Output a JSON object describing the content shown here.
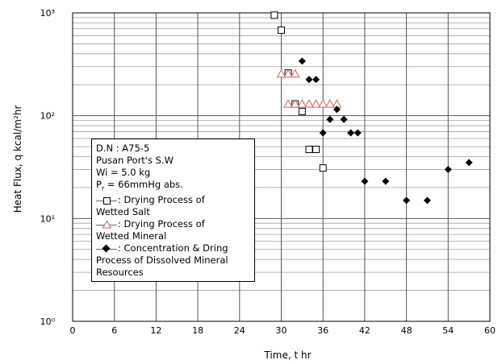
{
  "chart_data": {
    "type": "scatter",
    "xlabel": "Time, t  hr",
    "ylabel": "Heat Flux, q  kcal/m²hr",
    "xlim": [
      0,
      60
    ],
    "ylim": [
      1,
      1000
    ],
    "yscale": "log",
    "x_ticks": [
      "0",
      "6",
      "12",
      "18",
      "24",
      "30",
      "36",
      "42",
      "48",
      "54",
      "60"
    ],
    "y_ticks": [
      "10⁰",
      "10¹",
      "10²",
      "10³"
    ],
    "grid": true,
    "series": [
      {
        "name": "Drying Process of Wetted Salt",
        "marker": "square-open",
        "color": "#000000",
        "x": [
          29,
          30,
          31,
          32,
          33,
          34,
          35,
          36
        ],
        "y": [
          950,
          680,
          260,
          130,
          110,
          47,
          47,
          31
        ]
      },
      {
        "name": "Drying Process of Wetted Mineral",
        "marker": "triangle-open",
        "color": "#cc6666",
        "x": [
          30,
          31,
          32,
          31,
          32,
          33,
          34,
          35,
          36,
          37,
          38
        ],
        "y": [
          255,
          255,
          255,
          130,
          130,
          130,
          130,
          130,
          130,
          130,
          130
        ]
      },
      {
        "name": "Concentration & Dring Process of Dissolved Mineral Resources",
        "marker": "diamond-filled",
        "color": "#000000",
        "x": [
          33,
          34,
          35,
          38,
          37,
          39,
          36,
          40,
          41,
          42,
          45,
          48,
          51,
          54,
          57
        ],
        "y": [
          340,
          225,
          225,
          115,
          92,
          92,
          68,
          68,
          68,
          23,
          23,
          15,
          15,
          30,
          35
        ]
      }
    ]
  },
  "legend": {
    "line1": "D.N :  A75-5",
    "line2": "Pusan Port's S.W",
    "line3": " Wi = 5.0 kg",
    "line4_prefix": " P",
    "line4_sub": "r",
    "line4_rest": " = 66mmHg abs.",
    "entry1_a": ": Drying Process  of",
    "entry1_b": "Wetted Salt",
    "entry2_a": ": Drying Process of",
    "entry2_b": "Wetted Mineral",
    "entry3_a": ": Concentration & Dring",
    "entry3_b": "Process of Dissolved  Mineral",
    "entry3_c": "Resources"
  }
}
